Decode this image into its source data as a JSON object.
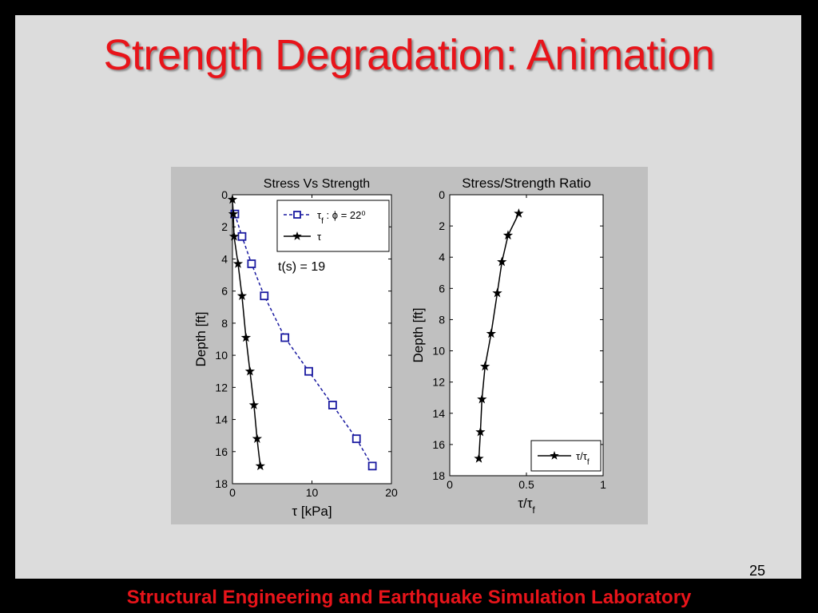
{
  "slide": {
    "title": "Strength Degradation: Animation",
    "page_number": "25",
    "footer": "Structural Engineering and Earthquake Simulation Laboratory",
    "colors": {
      "title": "#e8141a",
      "slide_background": "#dcdcdc",
      "frame": "#000000",
      "figure_background": "#c0c0c0"
    }
  },
  "chart_data": [
    {
      "type": "line",
      "title": "Stress Vs Strength",
      "xlabel": "τ [kPa]",
      "ylabel": "Depth [ft]",
      "xlim": [
        0,
        20
      ],
      "ylim": [
        0,
        18
      ],
      "y_reversed": true,
      "x_ticks": [
        "0",
        "10",
        "20"
      ],
      "y_ticks": [
        "0",
        "2",
        "4",
        "6",
        "8",
        "10",
        "12",
        "14",
        "16",
        "18"
      ],
      "legend_position": "top-right",
      "annotation": "t(s) =  19",
      "series": [
        {
          "name": "τf : ϕ = 22⁰",
          "color": "#1a1aa0",
          "line": "dashed",
          "marker": "square",
          "x": [
            0.3,
            1.2,
            2.4,
            4.0,
            6.6,
            9.6,
            12.6,
            15.6,
            17.6
          ],
          "y": [
            1.2,
            2.6,
            4.3,
            6.3,
            8.9,
            11.0,
            13.1,
            15.2,
            16.9
          ]
        },
        {
          "name": "τ",
          "color": "#000000",
          "line": "solid",
          "marker": "star",
          "x": [
            0.0,
            0.1,
            0.2,
            0.7,
            1.2,
            1.7,
            2.2,
            2.7,
            3.1,
            3.5
          ],
          "y": [
            0.3,
            1.2,
            2.6,
            4.3,
            6.3,
            8.9,
            11.0,
            13.1,
            15.2,
            16.9
          ]
        }
      ]
    },
    {
      "type": "line",
      "title": "Stress/Strength Ratio",
      "xlabel": "τ/τf",
      "ylabel": "Depth [ft]",
      "xlim": [
        0,
        1
      ],
      "ylim": [
        0,
        18
      ],
      "y_reversed": true,
      "x_ticks": [
        "0",
        "0.5",
        "1"
      ],
      "y_ticks": [
        "0",
        "2",
        "4",
        "6",
        "8",
        "10",
        "12",
        "14",
        "16",
        "18"
      ],
      "legend_position": "bottom-right",
      "series": [
        {
          "name": "τ/τf",
          "color": "#000000",
          "line": "solid",
          "marker": "star",
          "x": [
            0.45,
            0.38,
            0.34,
            0.31,
            0.27,
            0.23,
            0.21,
            0.2,
            0.19
          ],
          "y": [
            1.2,
            2.6,
            4.3,
            6.3,
            8.9,
            11.0,
            13.1,
            15.2,
            16.9
          ]
        }
      ]
    }
  ]
}
